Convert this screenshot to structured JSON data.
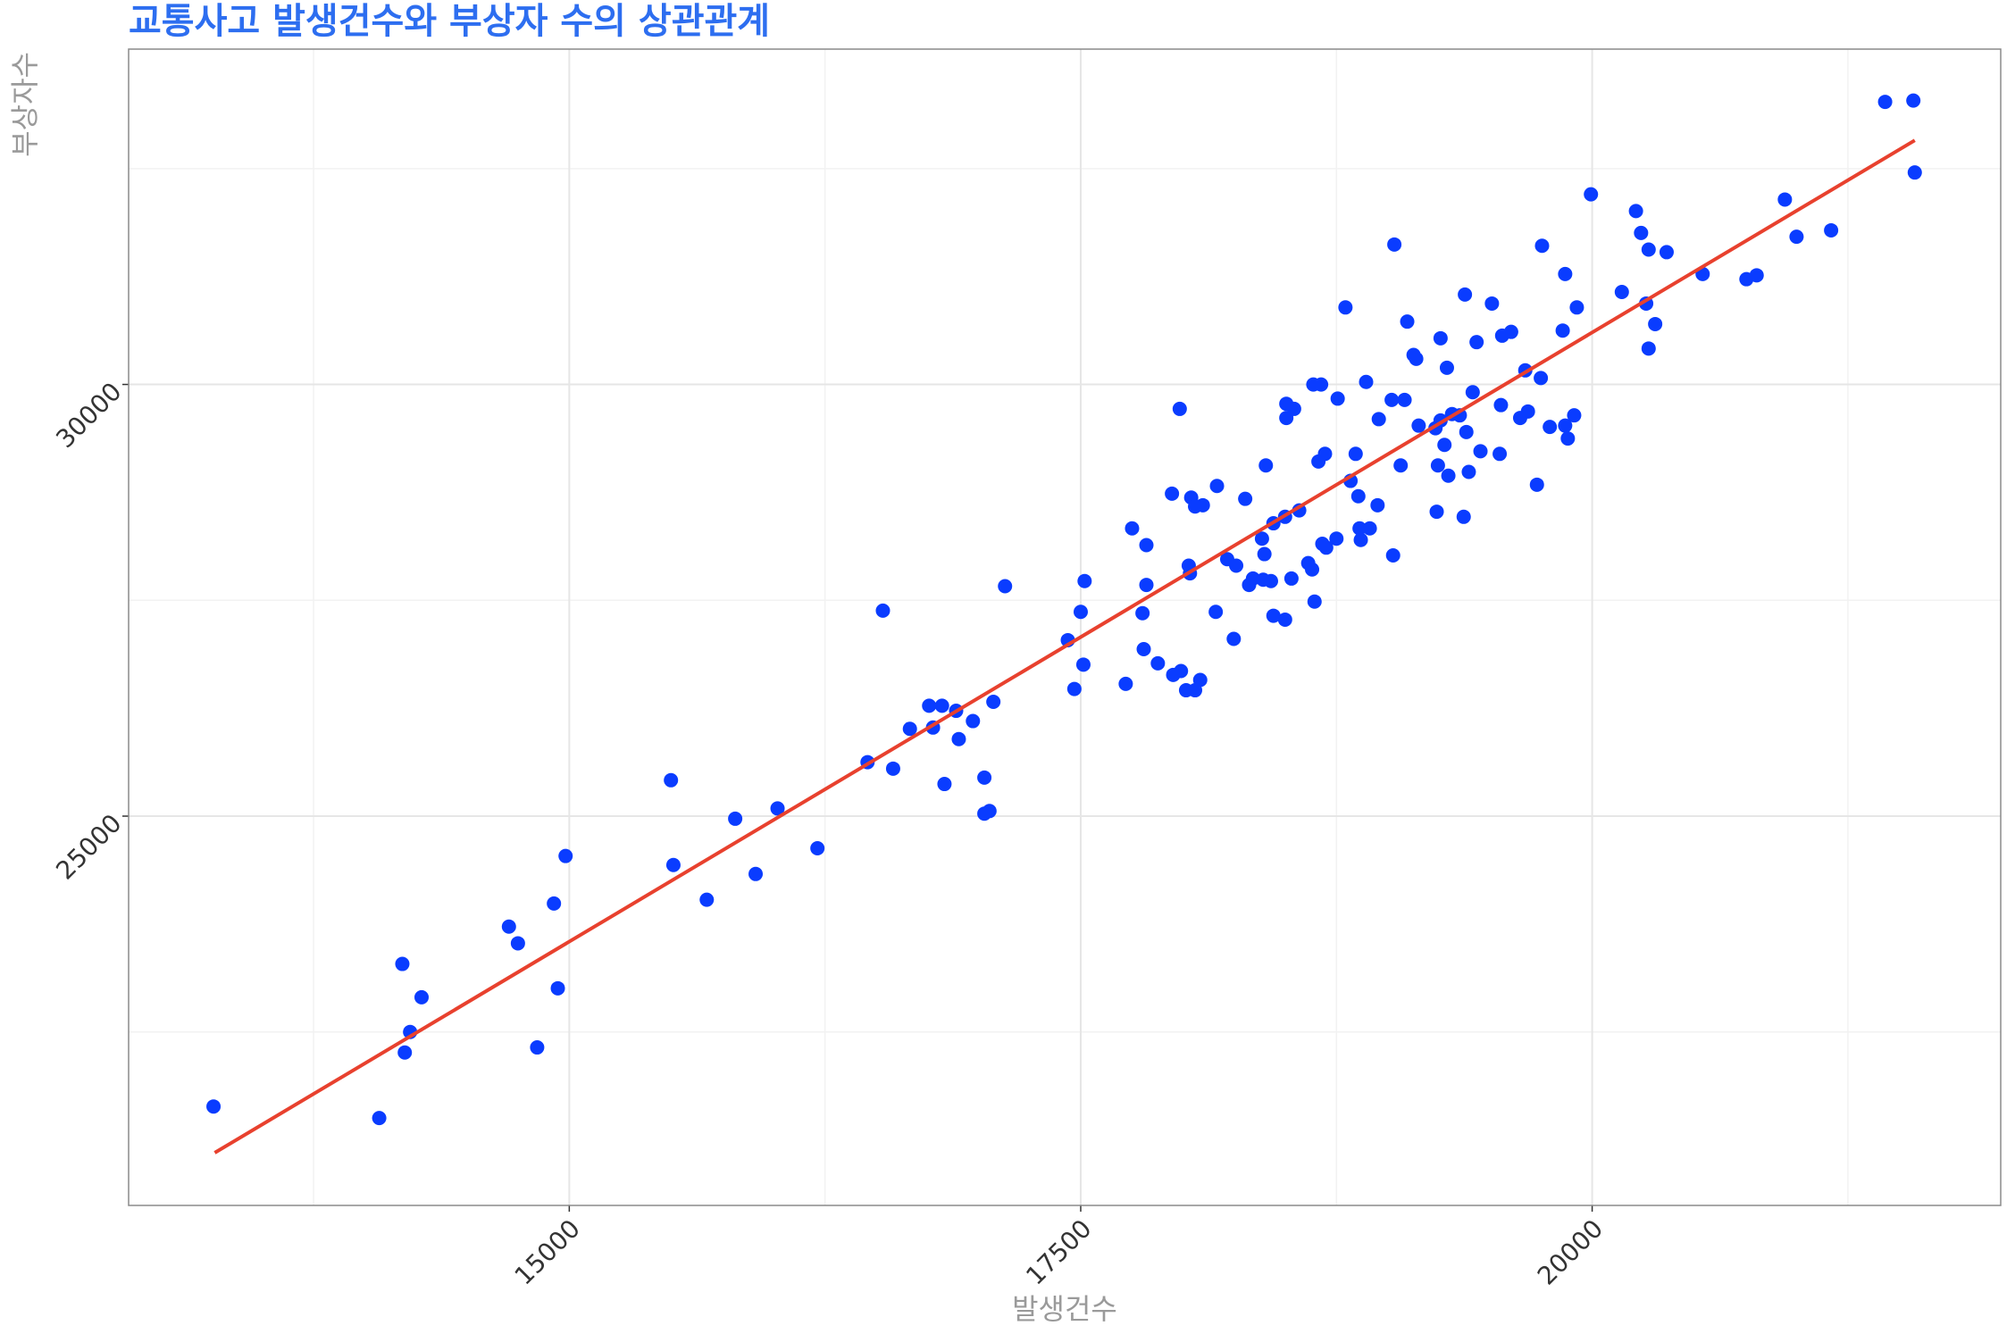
{
  "chart_data": {
    "type": "scatter",
    "title": "교통사고 발생건수와 부상자 수의 상관관계",
    "x_label": "발생건수",
    "y_label": "부상자수",
    "color": "#0a3cff",
    "grid": true,
    "xlim": [
      12846,
      21997
    ],
    "ylim": [
      20491,
      33884
    ],
    "xticks": [
      15000,
      17500,
      20000
    ],
    "yticks": [
      25000,
      30000
    ],
    "minor_xticks": [
      13750,
      16250,
      18750,
      21250
    ],
    "minor_yticks": [
      22500,
      27500,
      32500
    ],
    "x": [
      13261,
      14071,
      14184,
      14278,
      14222,
      14196,
      14705,
      14749,
      14843,
      14925,
      14944,
      14982,
      15497,
      15509,
      15672,
      15811,
      15911,
      16018,
      16213,
      16458,
      16533,
      16583,
      16665,
      16759,
      16778,
      16822,
      16834,
      16891,
      16904,
      16973,
      17029,
      17029,
      17054,
      17073,
      17130,
      17437,
      17469,
      17500,
      17513,
      17519,
      17720,
      17751,
      17802,
      17808,
      17821,
      17821,
      17877,
      17946,
      17952,
      17984,
      17990,
      18015,
      18028,
      18034,
      18040,
      18059,
      18059,
      18084,
      18097,
      18160,
      18166,
      18216,
      18248,
      18260,
      18304,
      18323,
      18342,
      18386,
      18392,
      18398,
      18405,
      18430,
      18442,
      18442,
      18499,
      18499,
      18505,
      18505,
      18530,
      18543,
      18568,
      18612,
      18631,
      18637,
      18643,
      18662,
      18675,
      18681,
      18694,
      18700,
      18750,
      18756,
      18794,
      18819,
      18844,
      18857,
      18863,
      18869,
      18895,
      18913,
      18951,
      18957,
      19020,
      19027,
      19033,
      19064,
      19083,
      19096,
      19127,
      19140,
      19152,
      19234,
      19240,
      19246,
      19259,
      19259,
      19278,
      19290,
      19297,
      19315,
      19353,
      19372,
      19378,
      19385,
      19397,
      19416,
      19435,
      19454,
      19510,
      19548,
      19554,
      19560,
      19604,
      19648,
      19673,
      19686,
      19730,
      19749,
      19755,
      19793,
      19856,
      19868,
      19868,
      19881,
      19912,
      19925,
      19994,
      20145,
      20214,
      20239,
      20264,
      20276,
      20276,
      20308,
      20364,
      20540,
      20754,
      20804,
      20942,
      20999,
      21168,
      21432,
      21570,
      21577
    ],
    "values": [
      21637,
      21503,
      23288,
      22902,
      22500,
      22262,
      23720,
      23527,
      22321,
      23988,
      23006,
      24538,
      25416,
      24434,
      24032,
      24970,
      24330,
      25089,
      24628,
      25625,
      27380,
      25550,
      26011,
      26279,
      26026,
      26279,
      25372,
      26220,
      25892,
      26101,
      25446,
      25029,
      25059,
      26324,
      27663,
      27038,
      26473,
      27366,
      26755,
      27723,
      26532,
      28333,
      27351,
      26934,
      28139,
      27678,
      26770,
      28735,
      26636,
      29717,
      26681,
      26458,
      27901,
      27812,
      28690,
      26458,
      28586,
      26577,
      28601,
      27366,
      28824,
      27976,
      27053,
      27901,
      28675,
      27678,
      27752,
      28214,
      27738,
      28035,
      29062,
      27723,
      28392,
      27321,
      27276,
      28467,
      29612,
      29776,
      27752,
      29717,
      28541,
      27931,
      27857,
      29999,
      27485,
      29107,
      29999,
      28154,
      29196,
      28110,
      28214,
      29836,
      30892,
      28883,
      29196,
      28705,
      28333,
      28199,
      30029,
      28333,
      28601,
      29598,
      29821,
      28020,
      31621,
      29062,
      29821,
      30728,
      30342,
      30297,
      29523,
      29493,
      28526,
      29062,
      30535,
      29583,
      29300,
      30193,
      28943,
      29657,
      29642,
      28467,
      31041,
      29449,
      28987,
      29910,
      30490,
      29226,
      30937,
      29196,
      29761,
      30565,
      30609,
      29612,
      30163,
      29687,
      28839,
      30074,
      31606,
      29508,
      30624,
      31279,
      29523,
      29374,
      29642,
      30892,
      32202,
      31071,
      32008,
      31755,
      30937,
      31562,
      30416,
      30699,
      31532,
      31279,
      31219,
      31264,
      32142,
      31711,
      31785,
      33273,
      33288,
      32455
    ],
    "trend_line": {
      "x": [
        13267,
        21577
      ],
      "values": [
        21101,
        32827
      ],
      "color": "#e8412e"
    }
  }
}
